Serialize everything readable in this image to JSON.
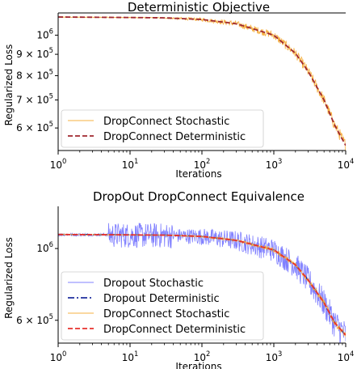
{
  "chart_data": [
    {
      "type": "line",
      "title": "Deterministic Objective",
      "xlabel": "Iterations",
      "ylabel": "Regularized Loss",
      "x_scale": "log",
      "y_scale": "log",
      "xlim": [
        1,
        10000
      ],
      "ylim": [
        530000,
        1130000
      ],
      "x_ticks": [
        {
          "value": 1,
          "base": "10",
          "exp": "0"
        },
        {
          "value": 10,
          "base": "10",
          "exp": "1"
        },
        {
          "value": 100,
          "base": "10",
          "exp": "2"
        },
        {
          "value": 1000,
          "base": "10",
          "exp": "3"
        },
        {
          "value": 10000,
          "base": "10",
          "exp": "4"
        }
      ],
      "y_ticks": [
        {
          "value": 600000,
          "mant": "6 × 10",
          "exp": "5"
        },
        {
          "value": 700000,
          "mant": "7 × 10",
          "exp": "5"
        },
        {
          "value": 800000,
          "mant": "8 × 10",
          "exp": "5"
        },
        {
          "value": 900000,
          "mant": "9 × 10",
          "exp": "5"
        },
        {
          "value": 1000000,
          "mant": "10",
          "exp": "6"
        }
      ],
      "grid": false,
      "legend": "lower-left",
      "series": [
        {
          "name": "DropConnect Stochastic",
          "color": "#f5b041",
          "style": "solid",
          "x": [
            1,
            10,
            30,
            100,
            300,
            1000,
            2000,
            3000,
            5000,
            7000,
            10000
          ],
          "y": [
            1105000,
            1102000,
            1100000,
            1090000,
            1065000,
            1000000,
            905000,
            820000,
            700000,
            610000,
            545000
          ]
        },
        {
          "name": "DropConnect Deterministic",
          "color": "#a0282f",
          "style": "dashed",
          "x": [
            1,
            10,
            30,
            100,
            300,
            1000,
            2000,
            3000,
            5000,
            7000,
            10000
          ],
          "y": [
            1105000,
            1102000,
            1100000,
            1090000,
            1065000,
            1000000,
            905000,
            820000,
            700000,
            610000,
            545000
          ]
        }
      ]
    },
    {
      "type": "line",
      "title": "DropOut DropConnect Equivalence",
      "xlabel": "Iterations",
      "ylabel": "Regularized Loss",
      "x_scale": "log",
      "y_scale": "log",
      "xlim": [
        1,
        10000
      ],
      "ylim": [
        510000,
        1350000
      ],
      "x_ticks": [
        {
          "value": 1,
          "base": "10",
          "exp": "0"
        },
        {
          "value": 10,
          "base": "10",
          "exp": "1"
        },
        {
          "value": 100,
          "base": "10",
          "exp": "2"
        },
        {
          "value": 1000,
          "base": "10",
          "exp": "3"
        },
        {
          "value": 10000,
          "base": "10",
          "exp": "4"
        }
      ],
      "y_ticks": [
        {
          "value": 600000,
          "mant": "6 × 10",
          "exp": "5"
        },
        {
          "value": 1000000,
          "mant": "10",
          "exp": "6"
        }
      ],
      "grid": false,
      "legend": "lower-left",
      "series": [
        {
          "name": "Dropout Stochastic",
          "color": "#8080ff",
          "style": "solid",
          "x": [
            1,
            10,
            30,
            100,
            300,
            1000,
            2000,
            3000,
            5000,
            7000,
            10000
          ],
          "y": [
            1105000,
            1102000,
            1100000,
            1090000,
            1060000,
            990000,
            890000,
            800000,
            680000,
            590000,
            540000
          ]
        },
        {
          "name": "Dropout Deterministic",
          "color": "#1f2f9f",
          "style": "dashdot",
          "x": [
            1,
            10,
            30,
            100,
            300,
            1000,
            2000,
            3000,
            5000,
            7000,
            10000
          ],
          "y": [
            1105000,
            1102000,
            1100000,
            1090000,
            1060000,
            990000,
            890000,
            800000,
            680000,
            590000,
            540000
          ]
        },
        {
          "name": "DropConnect Stochastic",
          "color": "#f5b041",
          "style": "solid",
          "x": [
            1,
            10,
            30,
            100,
            300,
            1000,
            2000,
            3000,
            5000,
            7000,
            10000
          ],
          "y": [
            1105000,
            1102000,
            1100000,
            1090000,
            1060000,
            990000,
            890000,
            800000,
            680000,
            590000,
            540000
          ]
        },
        {
          "name": "DropConnect Deterministic",
          "color": "#e8322c",
          "style": "dashed",
          "x": [
            1,
            10,
            30,
            100,
            300,
            1000,
            2000,
            3000,
            5000,
            7000,
            10000
          ],
          "y": [
            1105000,
            1102000,
            1100000,
            1090000,
            1060000,
            990000,
            890000,
            800000,
            680000,
            590000,
            540000
          ]
        }
      ]
    }
  ]
}
